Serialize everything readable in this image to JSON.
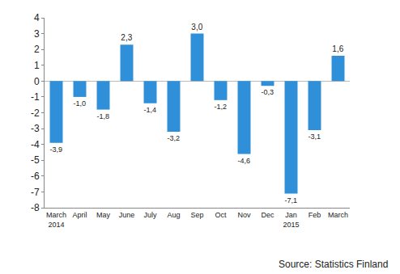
{
  "chart_data": {
    "type": "bar",
    "categories": [
      "March\n2014",
      "April",
      "May",
      "June",
      "July",
      "Aug",
      "Sep",
      "Oct",
      "Nov",
      "Dec",
      "Jan\n2015",
      "Feb",
      "March"
    ],
    "values": [
      -3.9,
      -1.0,
      -1.8,
      2.3,
      -1.4,
      -3.2,
      3.0,
      -1.2,
      -4.6,
      -0.3,
      -7.1,
      -3.1,
      1.6
    ],
    "value_labels": [
      "-3,9",
      "-1,0",
      "-1,8",
      "2,3",
      "-1,4",
      "-3,2",
      "3,0",
      "-1,2",
      "-4,6",
      "-0,3",
      "-7,1",
      "-3,1",
      "1,6"
    ],
    "data_labels": true,
    "color": "#2f8fd8",
    "ylim": [
      -8,
      4
    ],
    "yticks": [
      -8,
      -7,
      -6,
      -5,
      -4,
      -3,
      -2,
      -1,
      0,
      1,
      2,
      3,
      4
    ],
    "grid": false,
    "annotations": [
      "Source: Statistics Finland"
    ]
  }
}
